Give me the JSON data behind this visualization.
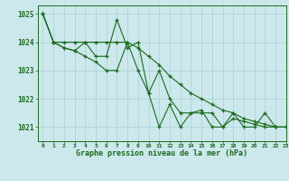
{
  "title": "Graphe pression niveau de la mer (hPa)",
  "background_color": "#cce8ec",
  "grid_color": "#aad0d5",
  "line_color": "#1a6b1a",
  "xlim": [
    -0.5,
    23
  ],
  "ylim": [
    1020.5,
    1025.3
  ],
  "yticks": [
    1021,
    1022,
    1023,
    1024,
    1025
  ],
  "xticks": [
    0,
    1,
    2,
    3,
    4,
    5,
    6,
    7,
    8,
    9,
    10,
    11,
    12,
    13,
    14,
    15,
    16,
    17,
    18,
    19,
    20,
    21,
    22,
    23
  ],
  "series": [
    [
      1025.0,
      1024.0,
      1024.0,
      1024.0,
      1024.0,
      1024.0,
      1024.0,
      1024.0,
      1024.0,
      1023.8,
      1023.5,
      1023.2,
      1022.8,
      1022.5,
      1022.2,
      1022.0,
      1021.8,
      1021.6,
      1021.5,
      1021.3,
      1021.2,
      1021.1,
      1021.0,
      1021.0
    ],
    [
      1025.0,
      1024.0,
      1023.8,
      1023.7,
      1023.5,
      1023.3,
      1023.0,
      1023.0,
      1024.0,
      1023.0,
      1022.2,
      1023.0,
      1022.0,
      1021.5,
      1021.5,
      1021.5,
      1021.5,
      1021.0,
      1021.3,
      1021.2,
      1021.1,
      1021.0,
      1021.0,
      1021.0
    ],
    [
      1025.0,
      1024.0,
      1023.8,
      1023.7,
      1024.0,
      1023.5,
      1023.5,
      1024.8,
      1023.8,
      1024.0,
      1022.2,
      1021.0,
      1021.8,
      1021.0,
      1021.5,
      1021.6,
      1021.0,
      1021.0,
      1021.5,
      1021.0,
      1021.0,
      1021.5,
      1021.0,
      1021.0
    ]
  ]
}
